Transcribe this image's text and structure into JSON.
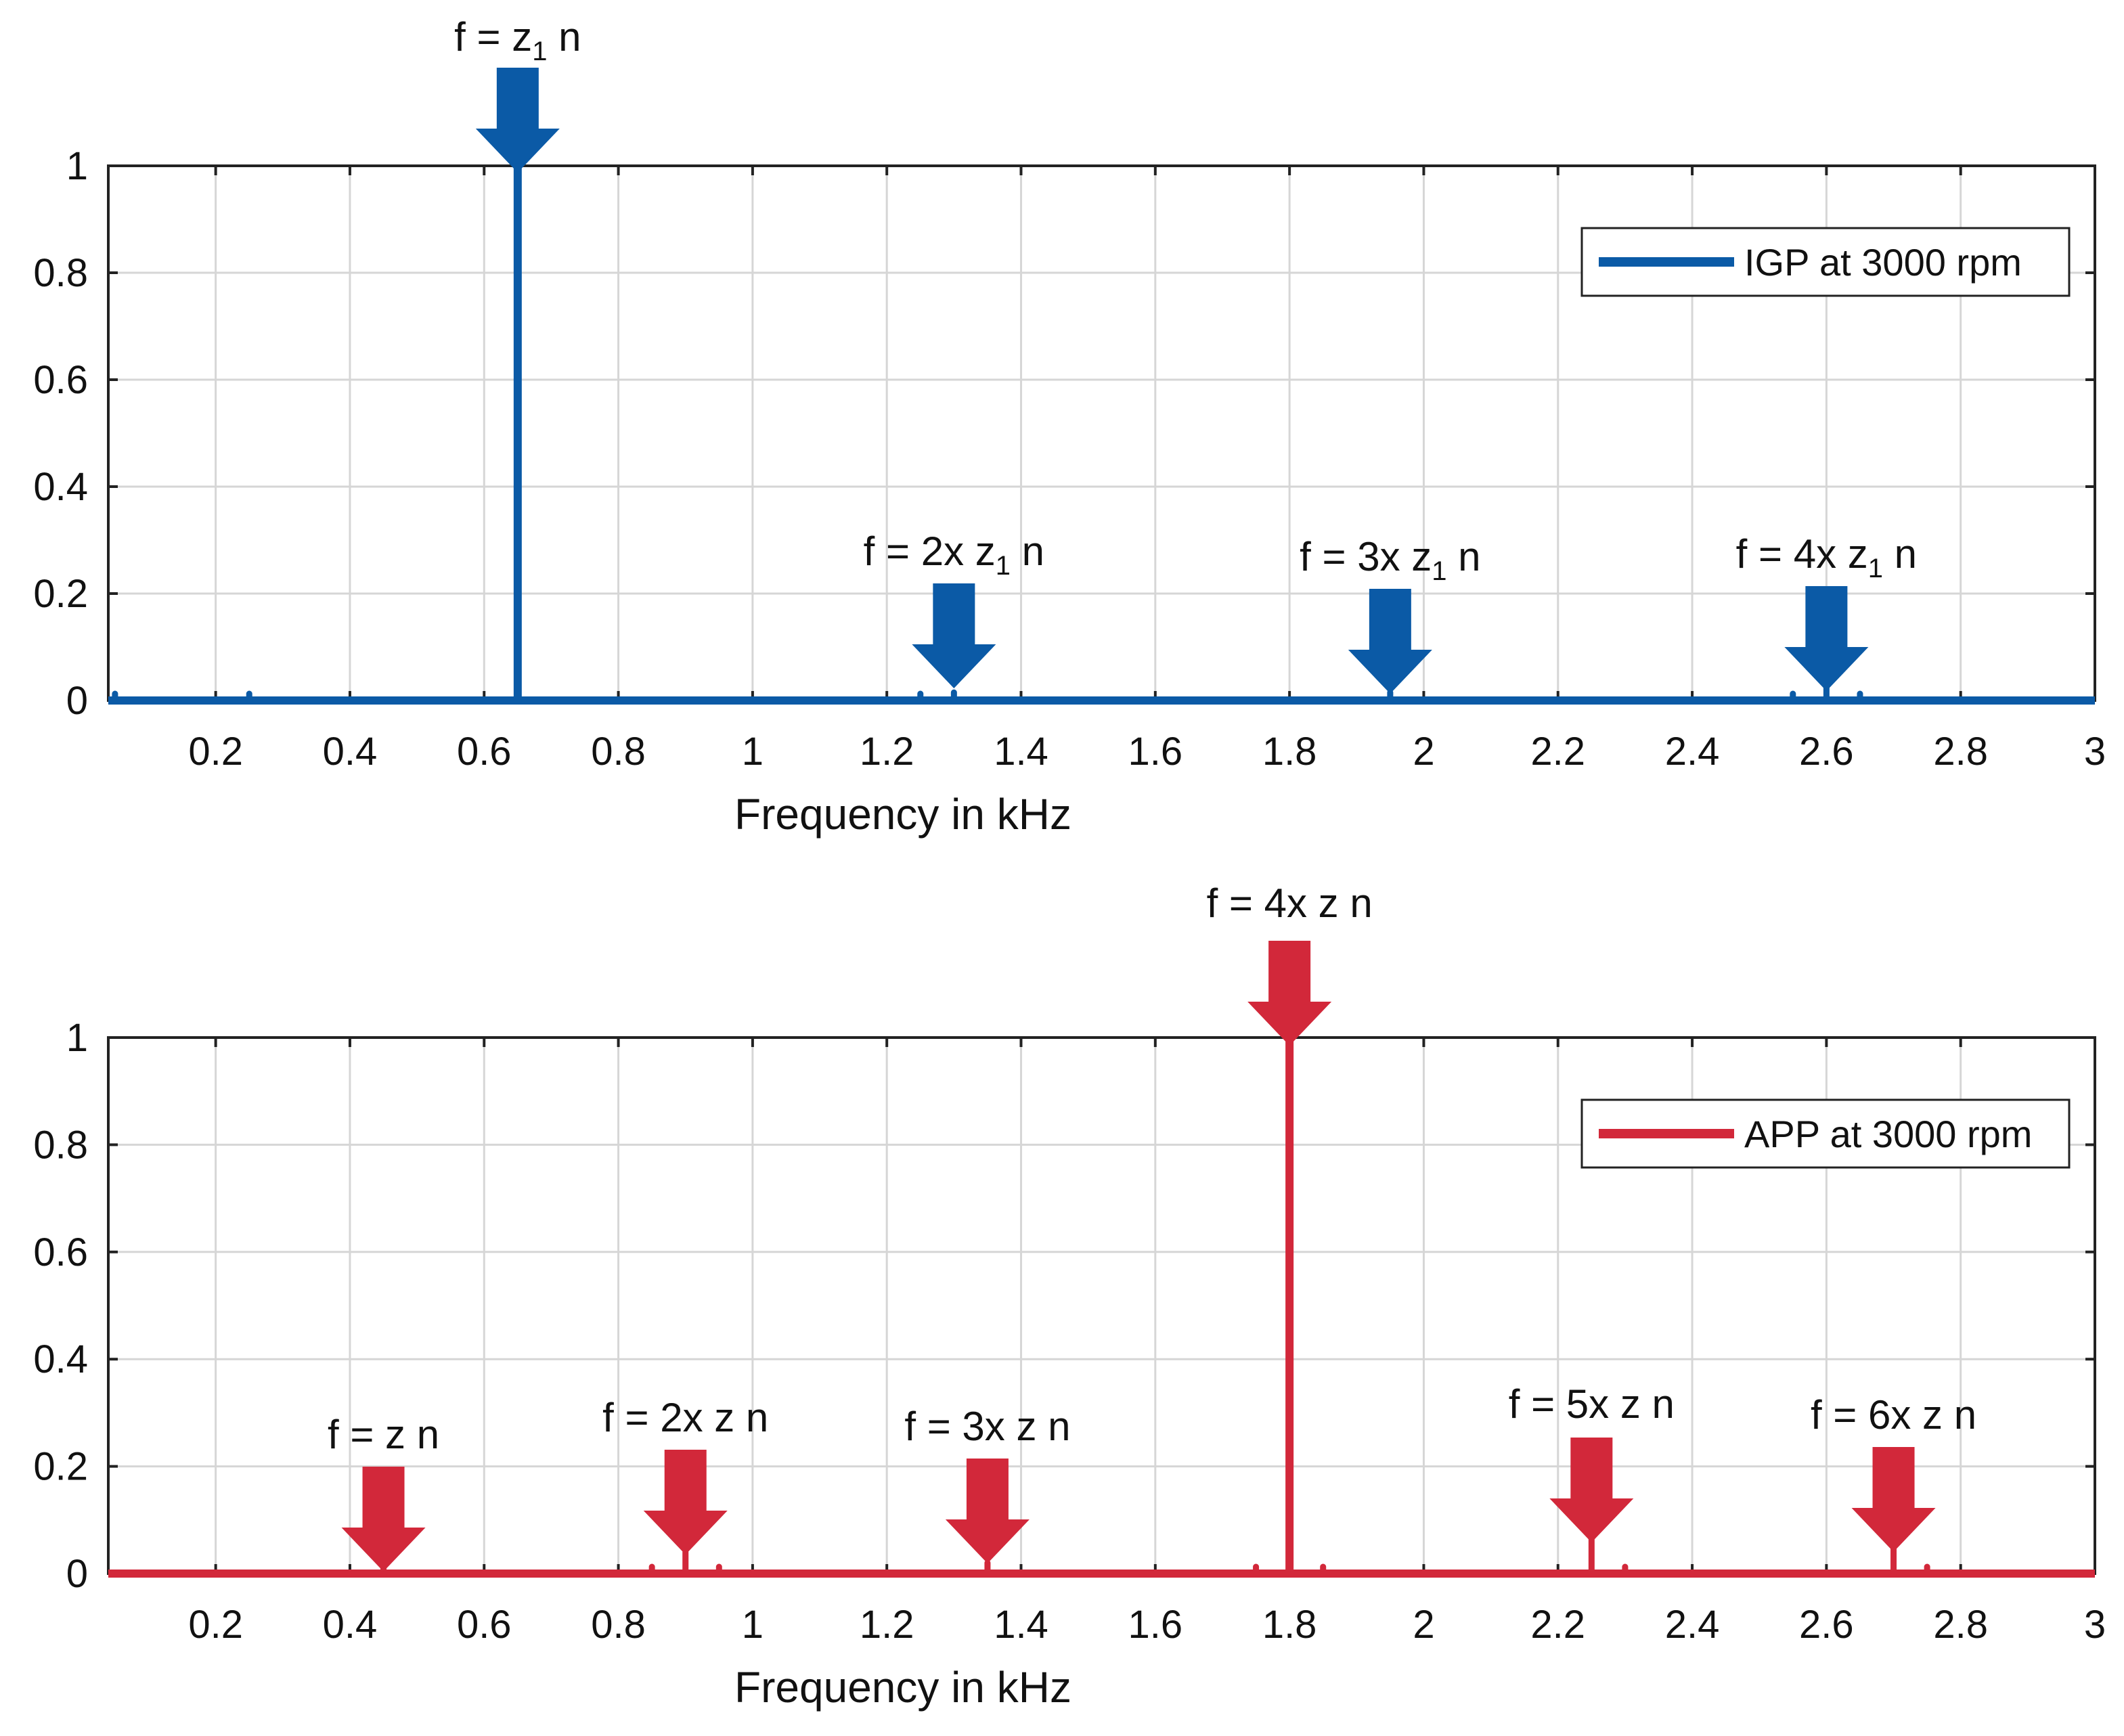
{
  "chart_data": [
    {
      "type": "line",
      "id": "igp",
      "color": "#0b5aa6",
      "xlabel": "Frequency in kHz",
      "ylabel": "",
      "xlim": [
        0.04,
        3.0
      ],
      "ylim": [
        0,
        1
      ],
      "xticks": [
        0.2,
        0.4,
        0.6,
        0.8,
        1,
        1.2,
        1.4,
        1.6,
        1.8,
        2,
        2.2,
        2.4,
        2.6,
        2.8,
        3
      ],
      "xtick_labels": [
        "0.2",
        "0.4",
        "0.6",
        "0.8",
        "1",
        "1.2",
        "1.4",
        "1.6",
        "1.8",
        "2",
        "2.2",
        "2.4",
        "2.6",
        "2.8",
        "3"
      ],
      "yticks": [
        0,
        0.2,
        0.4,
        0.6,
        0.8,
        1
      ],
      "ytick_labels": [
        "0",
        "0.2",
        "0.4",
        "0.6",
        "0.8",
        "1"
      ],
      "grid": true,
      "legend": {
        "label": "IGP at 3000 rpm",
        "position": "top-right"
      },
      "series": [
        {
          "name": "IGP at 3000 rpm",
          "peaks": [
            {
              "x": 0.05,
              "y": 0.005
            },
            {
              "x": 0.25,
              "y": 0.005
            },
            {
              "x": 0.65,
              "y": 1.0
            },
            {
              "x": 1.25,
              "y": 0.003
            },
            {
              "x": 1.3,
              "y": 0.015
            },
            {
              "x": 1.95,
              "y": 0.015
            },
            {
              "x": 2.55,
              "y": 0.004
            },
            {
              "x": 2.6,
              "y": 0.03
            },
            {
              "x": 2.65,
              "y": 0.004
            }
          ]
        }
      ],
      "annotations": [
        {
          "x": 0.65,
          "pre": "f = z",
          "sub": "1",
          "post": " n"
        },
        {
          "x": 1.3,
          "pre": "f = 2x z",
          "sub": "1",
          "post": " n"
        },
        {
          "x": 1.95,
          "pre": "f = 3x z",
          "sub": "1",
          "post": " n"
        },
        {
          "x": 2.6,
          "pre": "f = 4x z",
          "sub": "1",
          "post": " n"
        }
      ]
    },
    {
      "type": "line",
      "id": "app",
      "color": "#d2283a",
      "xlabel": "Frequency in kHz",
      "ylabel": "",
      "xlim": [
        0.04,
        3.0
      ],
      "ylim": [
        0,
        1
      ],
      "xticks": [
        0.2,
        0.4,
        0.6,
        0.8,
        1,
        1.2,
        1.4,
        1.6,
        1.8,
        2,
        2.2,
        2.4,
        2.6,
        2.8,
        3
      ],
      "xtick_labels": [
        "0.2",
        "0.4",
        "0.6",
        "0.8",
        "1",
        "1.2",
        "1.4",
        "1.6",
        "1.8",
        "2",
        "2.2",
        "2.4",
        "2.6",
        "2.8",
        "3"
      ],
      "yticks": [
        0,
        0.2,
        0.4,
        0.6,
        0.8,
        1
      ],
      "ytick_labels": [
        "0",
        "0.2",
        "0.4",
        "0.6",
        "0.8",
        "1"
      ],
      "grid": true,
      "legend": {
        "label": "APP at 3000 rpm",
        "position": "top-right"
      },
      "series": [
        {
          "name": "APP at 3000 rpm",
          "peaks": [
            {
              "x": 0.45,
              "y": 0.008
            },
            {
              "x": 0.85,
              "y": 0.01
            },
            {
              "x": 0.9,
              "y": 0.04
            },
            {
              "x": 0.95,
              "y": 0.012
            },
            {
              "x": 1.35,
              "y": 0.02
            },
            {
              "x": 1.75,
              "y": 0.006
            },
            {
              "x": 1.8,
              "y": 1.0
            },
            {
              "x": 1.85,
              "y": 0.01
            },
            {
              "x": 2.25,
              "y": 0.065
            },
            {
              "x": 2.3,
              "y": 0.01
            },
            {
              "x": 2.7,
              "y": 0.05
            },
            {
              "x": 2.75,
              "y": 0.008
            }
          ]
        }
      ],
      "annotations": [
        {
          "x": 0.45,
          "pre": "f = z n",
          "sub": "",
          "post": ""
        },
        {
          "x": 0.9,
          "pre": "f = 2x z n",
          "sub": "",
          "post": ""
        },
        {
          "x": 1.35,
          "pre": "f = 3x z n",
          "sub": "",
          "post": ""
        },
        {
          "x": 1.8,
          "pre": "f = 4x z n",
          "sub": "",
          "post": ""
        },
        {
          "x": 2.25,
          "pre": "f = 5x z n",
          "sub": "",
          "post": ""
        },
        {
          "x": 2.7,
          "pre": "f = 6x z n",
          "sub": "",
          "post": ""
        }
      ]
    }
  ]
}
